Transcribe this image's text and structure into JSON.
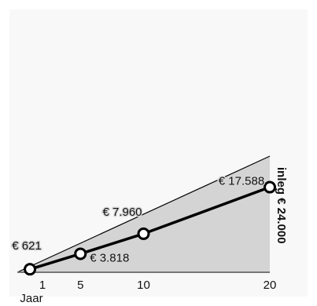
{
  "chart_data": {
    "type": "area",
    "title": "",
    "xlabel": "Jaar",
    "ylabel": "",
    "x": [
      1,
      5,
      10,
      20
    ],
    "x_tick_labels": [
      "1",
      "5",
      "10",
      "20"
    ],
    "series": [
      {
        "values": [
          621,
          3818,
          7960,
          17588
        ],
        "labels": [
          "€ 621",
          "€ 3.818",
          "€ 7.960",
          "€ 17.588"
        ]
      }
    ],
    "inleg": {
      "label": "inleg € 24.000",
      "x": [
        0,
        20
      ],
      "values": [
        0,
        24000
      ]
    },
    "xlim": [
      0,
      20
    ],
    "ylim": [
      0,
      24000
    ],
    "grid": false,
    "legend": "none"
  },
  "colors": {
    "area": "#d4d4d4",
    "line": "#000000",
    "marker_fill": "#ffffff",
    "panel": "#f8f8f8"
  }
}
